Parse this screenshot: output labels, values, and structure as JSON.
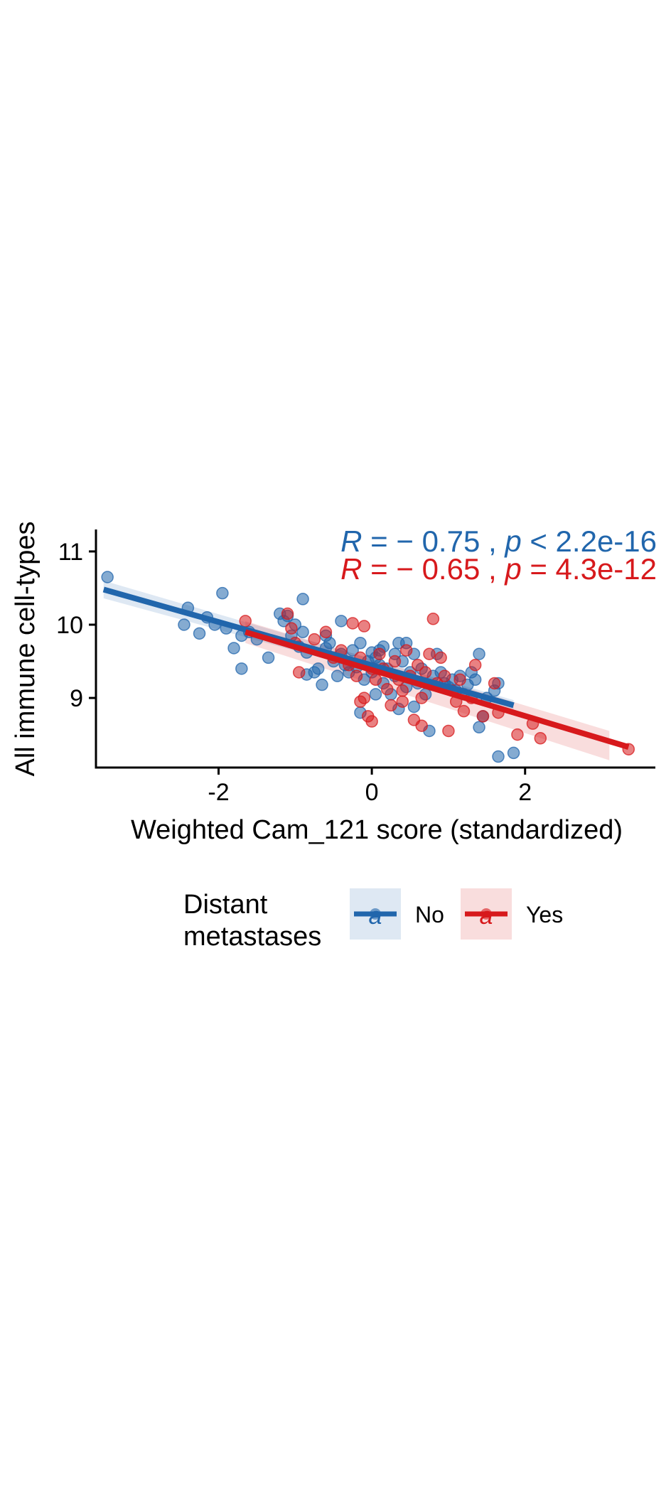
{
  "chart_data": {
    "type": "scatter",
    "title": "",
    "xlabel": "Weighted Cam_121 score (standardized)",
    "ylabel": "All immune cell-types",
    "xlim": [
      -3.6,
      3.7
    ],
    "ylim": [
      8.05,
      11.3
    ],
    "xticks": [
      -2,
      0,
      2
    ],
    "xtick_labels": [
      "-2",
      "0",
      "2"
    ],
    "yticks": [
      9,
      10,
      11
    ],
    "ytick_labels": [
      "9",
      "10",
      "11"
    ],
    "grid": false,
    "legend": {
      "title_line1": "Distant",
      "title_line2": "metastases",
      "position": "bottom",
      "key_glyph": "a",
      "entries": [
        "No",
        "Yes"
      ]
    },
    "series": [
      {
        "name": "No",
        "color": "#2166ac",
        "stat": {
          "r_symbol": "R",
          "r_text": " = − 0.75 , ",
          "p_symbol": "p",
          "p_text": " < 2.2e-16"
        },
        "regression": {
          "x": [
            -3.5,
            1.85
          ],
          "y": [
            10.48,
            8.9
          ]
        },
        "ci_band": {
          "x": [
            -3.5,
            1.85
          ],
          "upper": [
            10.6,
            8.97
          ],
          "lower": [
            10.36,
            8.83
          ]
        },
        "points": [
          [
            -3.45,
            10.65
          ],
          [
            -2.4,
            10.23
          ],
          [
            -2.45,
            10.0
          ],
          [
            -2.25,
            9.88
          ],
          [
            -2.15,
            10.1
          ],
          [
            -2.05,
            10.0
          ],
          [
            -1.95,
            10.43
          ],
          [
            -1.9,
            9.95
          ],
          [
            -1.8,
            9.68
          ],
          [
            -1.7,
            9.85
          ],
          [
            -1.7,
            9.4
          ],
          [
            -1.6,
            9.9
          ],
          [
            -1.5,
            9.8
          ],
          [
            -1.35,
            9.55
          ],
          [
            -1.2,
            10.15
          ],
          [
            -1.15,
            10.05
          ],
          [
            -1.1,
            10.12
          ],
          [
            -1.05,
            9.85
          ],
          [
            -1.0,
            10.0
          ],
          [
            -0.95,
            9.7
          ],
          [
            -0.9,
            10.35
          ],
          [
            -0.9,
            9.9
          ],
          [
            -0.85,
            9.62
          ],
          [
            -0.85,
            9.32
          ],
          [
            -0.75,
            9.35
          ],
          [
            -0.7,
            9.4
          ],
          [
            -0.65,
            9.18
          ],
          [
            -0.6,
            9.85
          ],
          [
            -0.55,
            9.75
          ],
          [
            -0.5,
            9.5
          ],
          [
            -0.45,
            9.3
          ],
          [
            -0.4,
            10.05
          ],
          [
            -0.4,
            9.6
          ],
          [
            -0.35,
            9.45
          ],
          [
            -0.3,
            9.35
          ],
          [
            -0.25,
            9.65
          ],
          [
            -0.2,
            9.42
          ],
          [
            -0.15,
            9.75
          ],
          [
            -0.1,
            9.25
          ],
          [
            -0.05,
            9.5
          ],
          [
            0.0,
            9.62
          ],
          [
            0.0,
            9.35
          ],
          [
            0.05,
            9.55
          ],
          [
            0.05,
            9.05
          ],
          [
            0.1,
            9.45
          ],
          [
            0.1,
            9.65
          ],
          [
            0.15,
            9.2
          ],
          [
            0.2,
            9.4
          ],
          [
            0.25,
            9.05
          ],
          [
            0.3,
            9.6
          ],
          [
            0.3,
            9.3
          ],
          [
            0.35,
            9.75
          ],
          [
            0.35,
            8.85
          ],
          [
            0.4,
            9.5
          ],
          [
            0.45,
            9.15
          ],
          [
            0.45,
            9.75
          ],
          [
            0.5,
            9.35
          ],
          [
            0.55,
            9.6
          ],
          [
            0.55,
            8.88
          ],
          [
            0.6,
            9.2
          ],
          [
            0.65,
            9.4
          ],
          [
            0.7,
            9.05
          ],
          [
            0.75,
            8.55
          ],
          [
            0.8,
            9.3
          ],
          [
            0.85,
            9.6
          ],
          [
            0.9,
            9.35
          ],
          [
            0.95,
            9.2
          ],
          [
            1.0,
            9.15
          ],
          [
            1.05,
            9.25
          ],
          [
            1.1,
            9.1
          ],
          [
            1.15,
            9.3
          ],
          [
            1.2,
            9.05
          ],
          [
            1.25,
            9.18
          ],
          [
            1.3,
            9.35
          ],
          [
            1.35,
            9.25
          ],
          [
            1.4,
            9.6
          ],
          [
            1.4,
            8.6
          ],
          [
            1.45,
            8.75
          ],
          [
            1.5,
            9.0
          ],
          [
            1.6,
            9.1
          ],
          [
            1.65,
            9.2
          ],
          [
            1.65,
            8.2
          ],
          [
            1.85,
            8.25
          ],
          [
            -0.15,
            8.8
          ],
          [
            0.15,
            9.7
          ],
          [
            -0.6,
            9.68
          ]
        ]
      },
      {
        "name": "Yes",
        "color": "#d7191c",
        "stat": {
          "r_symbol": "R",
          "r_text": " = − 0.65 , ",
          "p_symbol": "p",
          "p_text": " = 4.3e-12"
        },
        "regression": {
          "x": [
            -1.65,
            3.35
          ],
          "y": [
            9.9,
            8.33
          ]
        },
        "ci_band": {
          "x": [
            -1.65,
            3.1
          ],
          "upper": [
            10.05,
            8.55
          ],
          "lower": [
            9.75,
            8.15
          ]
        },
        "points": [
          [
            -1.65,
            10.05
          ],
          [
            -1.1,
            10.15
          ],
          [
            -1.05,
            9.95
          ],
          [
            -1.0,
            9.75
          ],
          [
            -0.95,
            9.35
          ],
          [
            -0.75,
            9.8
          ],
          [
            -0.6,
            9.9
          ],
          [
            -0.5,
            9.55
          ],
          [
            -0.4,
            9.65
          ],
          [
            -0.3,
            9.45
          ],
          [
            -0.25,
            10.02
          ],
          [
            -0.2,
            9.3
          ],
          [
            -0.15,
            9.55
          ],
          [
            -0.1,
            9.98
          ],
          [
            -0.1,
            9.0
          ],
          [
            -0.05,
            8.75
          ],
          [
            0.0,
            9.4
          ],
          [
            0.0,
            8.68
          ],
          [
            0.05,
            9.25
          ],
          [
            0.1,
            9.6
          ],
          [
            0.15,
            9.4
          ],
          [
            0.2,
            9.12
          ],
          [
            0.25,
            8.9
          ],
          [
            0.3,
            9.5
          ],
          [
            0.35,
            9.25
          ],
          [
            0.4,
            8.95
          ],
          [
            0.45,
            9.65
          ],
          [
            0.5,
            9.3
          ],
          [
            0.55,
            8.7
          ],
          [
            0.6,
            9.45
          ],
          [
            0.65,
            9.0
          ],
          [
            0.7,
            9.35
          ],
          [
            0.75,
            9.6
          ],
          [
            0.8,
            10.08
          ],
          [
            0.85,
            9.2
          ],
          [
            0.9,
            9.55
          ],
          [
            0.95,
            9.3
          ],
          [
            1.0,
            8.55
          ],
          [
            1.05,
            9.1
          ],
          [
            1.15,
            9.25
          ],
          [
            1.2,
            8.82
          ],
          [
            1.3,
            9.0
          ],
          [
            1.35,
            9.45
          ],
          [
            1.45,
            8.75
          ],
          [
            1.6,
            9.2
          ],
          [
            1.65,
            8.8
          ],
          [
            1.9,
            8.5
          ],
          [
            2.1,
            8.65
          ],
          [
            2.2,
            8.45
          ],
          [
            3.35,
            8.3
          ],
          [
            -0.15,
            8.95
          ],
          [
            0.4,
            9.1
          ],
          [
            0.65,
            8.62
          ],
          [
            1.1,
            8.95
          ]
        ]
      }
    ]
  }
}
